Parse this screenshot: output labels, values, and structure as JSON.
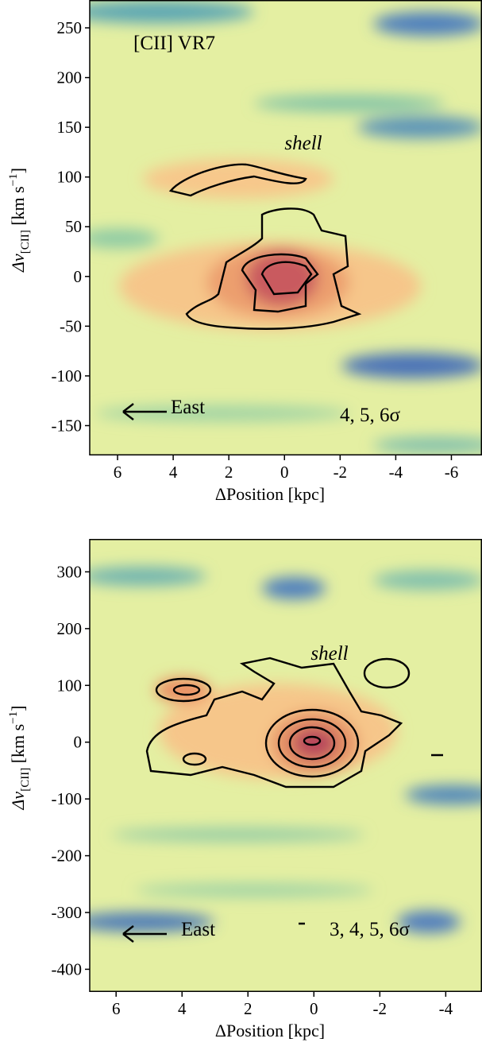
{
  "chart_data": [
    {
      "type": "image",
      "xlabel": "ΔPosition [kpc]",
      "ylabel": {
        "main": "Δv",
        "sub": "[CII]",
        "unit": " [km s",
        "sup": "−1",
        "close": "]"
      },
      "xlim": [
        7,
        -7.1
      ],
      "ylim": [
        -180,
        278
      ],
      "xticks": [
        6,
        4,
        2,
        0,
        -2,
        -4,
        -6
      ],
      "yticks": [
        250,
        200,
        150,
        100,
        50,
        0,
        -50,
        -100,
        -150
      ],
      "annotations": {
        "name": "[CII] VR7",
        "feature": "shell",
        "direction": "East",
        "levels": "4, 5, 6σ"
      }
    },
    {
      "type": "image",
      "xlabel": "ΔPosition [kpc]",
      "ylabel": {
        "main": "Δv",
        "sub": "[CII]",
        "unit": " [km s",
        "sup": "−1",
        "close": "]"
      },
      "xlim": [
        6.8,
        -5.1
      ],
      "ylim": [
        -440,
        358
      ],
      "xticks": [
        6,
        4,
        2,
        0,
        -2,
        -4
      ],
      "yticks": [
        300,
        200,
        100,
        0,
        -100,
        -200,
        -300,
        -400
      ],
      "annotations": {
        "feature": "shell",
        "direction": "East",
        "levels": "3, 4, 5, 6σ"
      }
    }
  ]
}
